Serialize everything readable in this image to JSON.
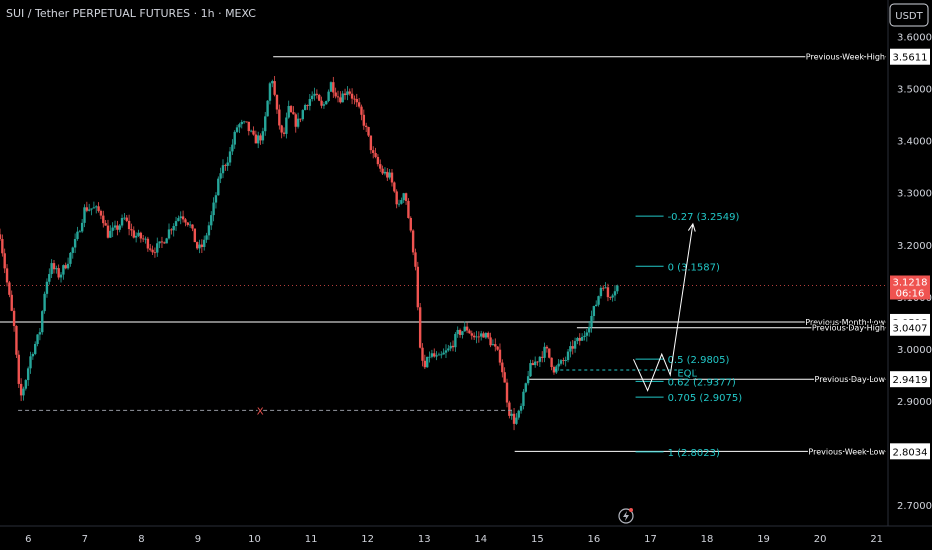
{
  "header": {
    "title": "SUI / Tether PERPETUAL FUTURES · 1h · MEXC",
    "currency": "USDT",
    "current_price": "3.1218",
    "countdown": "06:16"
  },
  "colors": {
    "background": "#000000",
    "up": "#26a69a",
    "down": "#ef5350",
    "level_line": "#ffffff",
    "fib": "#22c7c7",
    "price_line": "#ef5350",
    "axis_text": "#d1d4dc"
  },
  "chart_data": {
    "type": "candlestick",
    "title": "SUI / Tether PERPETUAL FUTURES · 1h · MEXC",
    "ylim": [
      2.66,
      3.67
    ],
    "xlim": [
      5.5,
      21.2
    ],
    "y_ticks": [
      "3.6000",
      "3.5000",
      "3.4000",
      "3.3000",
      "3.2000",
      "3.1000",
      "3.0000",
      "2.9000",
      "2.7000"
    ],
    "y_tick_values": [
      3.6,
      3.5,
      3.4,
      3.3,
      3.2,
      3.1,
      3.0,
      2.9,
      2.7
    ],
    "x_ticks": [
      "6",
      "7",
      "8",
      "9",
      "10",
      "11",
      "12",
      "13",
      "14",
      "15",
      "16",
      "17",
      "18",
      "19",
      "20",
      "21"
    ],
    "x_tick_values": [
      6,
      7,
      8,
      9,
      10,
      11,
      12,
      13,
      14,
      15,
      16,
      17,
      18,
      19,
      20,
      21
    ],
    "price_path": [
      [
        5.5,
        3.22
      ],
      [
        5.62,
        3.13
      ],
      [
        5.75,
        3.04
      ],
      [
        5.85,
        2.9
      ],
      [
        5.95,
        2.94
      ],
      [
        6.05,
        2.99
      ],
      [
        6.2,
        3.03
      ],
      [
        6.3,
        3.12
      ],
      [
        6.4,
        3.16
      ],
      [
        6.55,
        3.14
      ],
      [
        6.7,
        3.17
      ],
      [
        6.85,
        3.21
      ],
      [
        7.0,
        3.27
      ],
      [
        7.15,
        3.27
      ],
      [
        7.3,
        3.26
      ],
      [
        7.4,
        3.22
      ],
      [
        7.55,
        3.23
      ],
      [
        7.7,
        3.25
      ],
      [
        7.85,
        3.22
      ],
      [
        8.05,
        3.21
      ],
      [
        8.2,
        3.19
      ],
      [
        8.35,
        3.2
      ],
      [
        8.5,
        3.23
      ],
      [
        8.7,
        3.26
      ],
      [
        8.85,
        3.24
      ],
      [
        9.0,
        3.19
      ],
      [
        9.1,
        3.2
      ],
      [
        9.25,
        3.26
      ],
      [
        9.4,
        3.34
      ],
      [
        9.55,
        3.37
      ],
      [
        9.7,
        3.43
      ],
      [
        9.85,
        3.43
      ],
      [
        10.0,
        3.4
      ],
      [
        10.15,
        3.41
      ],
      [
        10.3,
        3.53
      ],
      [
        10.4,
        3.45
      ],
      [
        10.5,
        3.4
      ],
      [
        10.6,
        3.46
      ],
      [
        10.75,
        3.43
      ],
      [
        10.9,
        3.47
      ],
      [
        11.05,
        3.49
      ],
      [
        11.2,
        3.46
      ],
      [
        11.35,
        3.51
      ],
      [
        11.5,
        3.48
      ],
      [
        11.65,
        3.5
      ],
      [
        11.8,
        3.47
      ],
      [
        11.95,
        3.43
      ],
      [
        12.1,
        3.37
      ],
      [
        12.25,
        3.34
      ],
      [
        12.4,
        3.33
      ],
      [
        12.55,
        3.27
      ],
      [
        12.65,
        3.31
      ],
      [
        12.75,
        3.23
      ],
      [
        12.85,
        3.16
      ],
      [
        12.92,
        3.0
      ],
      [
        13.0,
        2.96
      ],
      [
        13.1,
        2.99
      ],
      [
        13.25,
        2.98
      ],
      [
        13.45,
        3.0
      ],
      [
        13.6,
        3.03
      ],
      [
        13.75,
        3.04
      ],
      [
        13.9,
        3.02
      ],
      [
        14.05,
        3.03
      ],
      [
        14.2,
        3.01
      ],
      [
        14.35,
        2.98
      ],
      [
        14.5,
        2.88
      ],
      [
        14.6,
        2.86
      ],
      [
        14.7,
        2.88
      ],
      [
        14.85,
        2.96
      ],
      [
        15.0,
        2.98
      ],
      [
        15.15,
        3.0
      ],
      [
        15.3,
        2.96
      ],
      [
        15.5,
        2.98
      ],
      [
        15.65,
        3.01
      ],
      [
        15.8,
        3.02
      ],
      [
        15.95,
        3.06
      ],
      [
        16.05,
        3.09
      ],
      [
        16.15,
        3.13
      ],
      [
        16.25,
        3.1
      ],
      [
        16.4,
        3.12
      ],
      [
        16.45,
        3.1218
      ]
    ],
    "levels": [
      {
        "name": "Previous Week High",
        "value": 3.5611,
        "label": "3.5611",
        "x_from": 10.33
      },
      {
        "name": "Previous Month Low",
        "value": 3.0518,
        "label": "3.0518",
        "x_from": 5.5
      },
      {
        "name": "Previous Day High",
        "value": 3.0407,
        "label": "3.0407",
        "x_from": 15.7
      },
      {
        "name": "Previous Day Low",
        "value": 2.9419,
        "label": "2.9419",
        "x_from": 14.85
      },
      {
        "name": "Previous Week Low",
        "value": 2.8034,
        "label": "2.8034",
        "x_from": 14.6
      }
    ],
    "fib_levels": [
      {
        "label": "-0.27 (3.2549)",
        "value": 3.2549
      },
      {
        "label": "0 (3.1587)",
        "value": 3.1587
      },
      {
        "label": "0.5 (2.9805)",
        "value": 2.9805
      },
      {
        "label": "0.62 (2.9377)",
        "value": 2.9377
      },
      {
        "label": "0.705 (2.9075)",
        "value": 2.9075
      },
      {
        "label": "1 (2.8023)",
        "value": 2.8023
      }
    ],
    "fib_x_range": [
      19.0,
      19.5
    ],
    "annotations": [
      {
        "text": "X",
        "x": 10.1,
        "value": 2.8821
      },
      {
        "text": "EQL",
        "x": 17.65,
        "value": 2.955
      }
    ],
    "x_level_line": {
      "value": 2.8821,
      "x_from": 5.82,
      "x_to": 14.55
    },
    "eql_line": {
      "value": 2.9595,
      "x_from": 15.3,
      "x_to": 17.8
    },
    "projection": [
      [
        16.7,
        2.98
      ],
      [
        16.95,
        2.92
      ],
      [
        17.2,
        2.99
      ],
      [
        17.35,
        2.95
      ],
      [
        17.75,
        3.24
      ]
    ]
  }
}
